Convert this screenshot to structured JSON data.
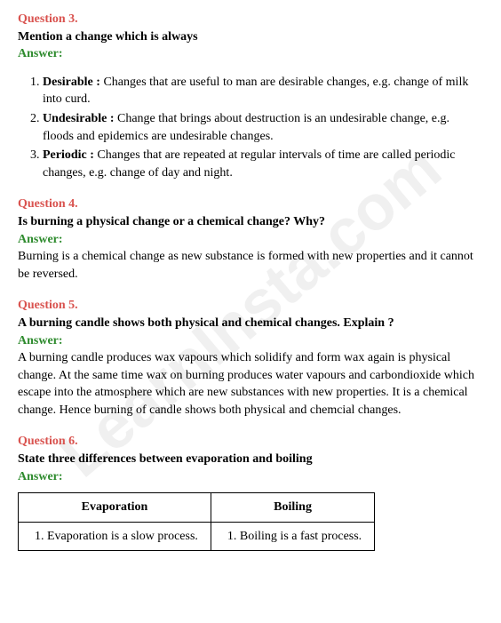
{
  "watermark": "LearnInsta.com",
  "q3": {
    "label": "Question 3.",
    "text": "Mention a change which is always",
    "answer_label": "Answer:",
    "items": [
      {
        "term": "Desirable :",
        "desc": " Changes that are useful to man are desirable changes, e.g. change of milk into curd."
      },
      {
        "term": "Undesirable :",
        "desc": " Change that brings about destruction is an undesirable change, e.g. floods and epidemics are undesirable changes."
      },
      {
        "term": "Periodic :",
        "desc": " Changes that are repeated at regular intervals of time are called periodic changes, e.g. change of day and night."
      }
    ]
  },
  "q4": {
    "label": "Question 4.",
    "text": "Is burning a physical change or a chemical change? Why?",
    "answer_label": "Answer:",
    "answer_body": "Burning is a chemical change as new substance is formed with new properties and it cannot be reversed."
  },
  "q5": {
    "label": "Question 5.",
    "text": "A burning candle shows both physical and chemical changes. Explain ?",
    "answer_label": "Answer:",
    "answer_body": "A burning candle produces wax vapours which solidify and form wax again is physical change. At the same time wax on burning produces water vapours and carbondioxide which escape into the atmosphere which are new substances with new properties. It is a chemical change. Hence burning of candle shows both physical and chemcial changes."
  },
  "q6": {
    "label": "Question 6.",
    "text": "State three differences between evaporation and boiling",
    "answer_label": "Answer:",
    "table": {
      "columns": [
        "Evaporation",
        "Boiling"
      ],
      "rows": [
        [
          "Evaporation is a slow process.",
          "Boiling is a fast process."
        ]
      ]
    }
  }
}
